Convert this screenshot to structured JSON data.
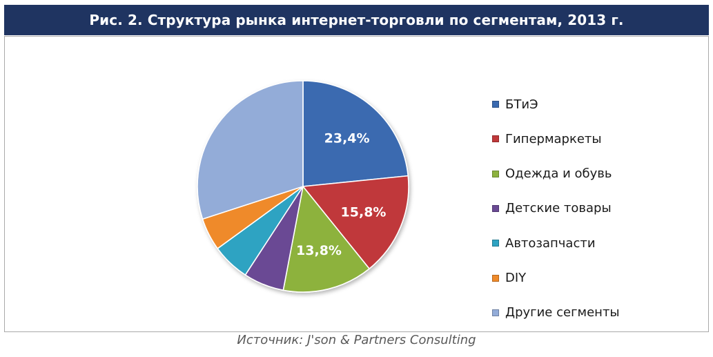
{
  "header": {
    "title": "Рис. 2. Структура рынка интернет-торговли  по сегментам, 2013 г."
  },
  "chart_data": {
    "type": "pie",
    "title": "Рис. 2. Структура рынка интернет-торговли  по сегментам, 2013 г.",
    "legend_position": "right",
    "slices": [
      {
        "name": "БТиЭ",
        "value": 23.4,
        "label": "23,4%",
        "color": "#3a6ab0"
      },
      {
        "name": "Гипермаркеты",
        "value": 15.8,
        "label": "15,8%",
        "color": "#c0383a"
      },
      {
        "name": "Одежда и обувь",
        "value": 13.8,
        "label": "13,8%",
        "color": "#8db23e"
      },
      {
        "name": "Детские товары",
        "value": 6.2,
        "label": "",
        "color": "#6a4a94"
      },
      {
        "name": "Автозапчасти",
        "value": 5.8,
        "label": "",
        "color": "#2ea3c2"
      },
      {
        "name": "DIY",
        "value": 5.0,
        "label": "",
        "color": "#ef8a2a"
      },
      {
        "name": "Другие сегменты",
        "value": 30.0,
        "label": "",
        "color": "#93acd8"
      }
    ]
  },
  "footer": {
    "source": "Источник: J'son & Partners Consulting"
  }
}
